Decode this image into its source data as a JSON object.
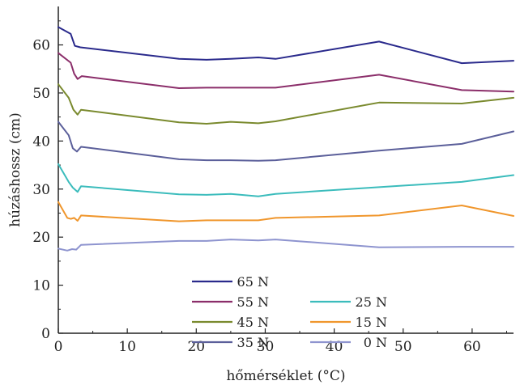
{
  "chart_data": {
    "type": "line",
    "title": "",
    "xlabel": "hőmérséklet (°C)",
    "ylabel": "húzáshossz (cm)",
    "xlim": [
      0,
      66
    ],
    "ylim": [
      0,
      68
    ],
    "xticks": [
      0,
      10,
      20,
      30,
      40,
      50,
      60
    ],
    "yticks": [
      0,
      10,
      20,
      30,
      40,
      50,
      60
    ],
    "grid": false,
    "legend_position": "bottom-center",
    "series": [
      {
        "name": "65 N",
        "color": "#2a2a8c",
        "x": [
          0,
          1.8,
          2.4,
          3.2,
          17.5,
          21.5,
          25,
          29,
          31.5,
          46.5,
          58.5,
          66
        ],
        "y": [
          63.7,
          62.3,
          59.8,
          59.5,
          57.1,
          56.9,
          57.1,
          57.4,
          57.1,
          60.7,
          56.2,
          56.7
        ]
      },
      {
        "name": "55 N",
        "color": "#8b2e6a",
        "x": [
          0,
          1.8,
          2.3,
          2.8,
          3.4,
          17.5,
          21.5,
          25,
          29,
          31.5,
          46.5,
          58.5,
          66
        ],
        "y": [
          58.3,
          56.3,
          54.0,
          52.9,
          53.5,
          51.0,
          51.1,
          51.1,
          51.1,
          51.1,
          53.8,
          50.6,
          50.3
        ]
      },
      {
        "name": "45 N",
        "color": "#7a8a2e",
        "x": [
          0,
          1.5,
          2.2,
          2.8,
          3.3,
          17.5,
          21.5,
          25,
          29,
          31.5,
          46.5,
          58.5,
          66
        ],
        "y": [
          51.8,
          49.0,
          46.5,
          45.5,
          46.5,
          43.9,
          43.6,
          44.0,
          43.7,
          44.1,
          48.0,
          47.8,
          49.0
        ]
      },
      {
        "name": "35 N",
        "color": "#5b5f9a",
        "x": [
          0,
          1.5,
          2.1,
          2.7,
          3.3,
          17.5,
          21.5,
          25,
          29,
          31.5,
          46.5,
          58.5,
          66
        ],
        "y": [
          44.0,
          41.2,
          38.5,
          37.8,
          38.8,
          36.2,
          36.0,
          36.0,
          35.9,
          36.0,
          38.0,
          39.4,
          42.0
        ]
      },
      {
        "name": "25 N",
        "color": "#3bbcbc",
        "x": [
          0,
          1.5,
          2.1,
          2.8,
          3.3,
          17.5,
          21.5,
          25,
          29,
          31.5,
          46.5,
          58.5,
          66
        ],
        "y": [
          35.2,
          31.5,
          30.3,
          29.4,
          30.6,
          28.9,
          28.8,
          29.0,
          28.5,
          29.0,
          30.4,
          31.5,
          32.9
        ]
      },
      {
        "name": "15 N",
        "color": "#f0962c",
        "x": [
          0,
          1.3,
          1.8,
          2.3,
          2.8,
          3.3,
          17.5,
          21.5,
          25,
          29,
          31.5,
          46.5,
          58.5,
          66
        ],
        "y": [
          27.3,
          24.0,
          23.8,
          24.0,
          23.4,
          24.5,
          23.3,
          23.5,
          23.5,
          23.5,
          24.0,
          24.5,
          26.6,
          24.4
        ]
      },
      {
        "name": "0 N",
        "color": "#8e94cf",
        "x": [
          0,
          1.3,
          2.0,
          2.6,
          3.3,
          17.5,
          21.5,
          25,
          29,
          31.5,
          46.5,
          58.5,
          66
        ],
        "y": [
          17.6,
          17.2,
          17.5,
          17.4,
          18.4,
          19.2,
          19.2,
          19.5,
          19.3,
          19.5,
          17.9,
          18.0,
          18.0
        ]
      }
    ]
  }
}
